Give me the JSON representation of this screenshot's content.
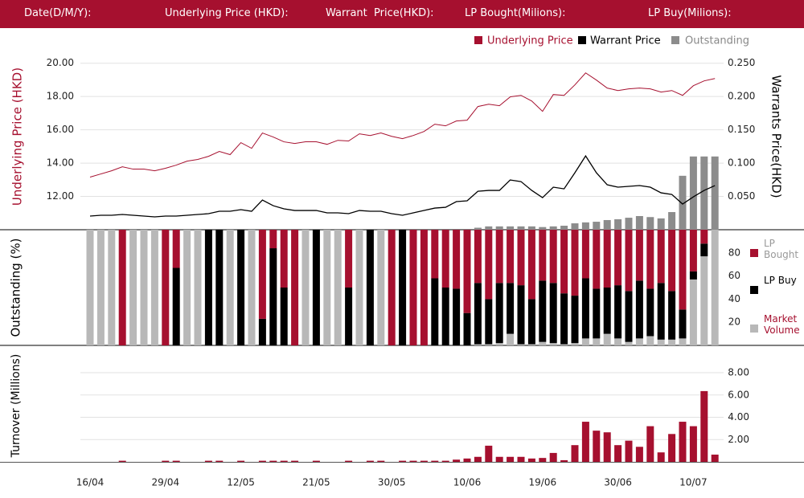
{
  "header": {
    "labels": [
      "Date(D/M/Y):",
      "Underlying Price (HKD):",
      "Warrant  Price(HKD):",
      "LP Bought(Milions):",
      "LP Buy(Milions):"
    ]
  },
  "chart_data": [
    {
      "type": "line",
      "y_label": "Underlying Price (HKD)",
      "y2_label": "Warrants  Price(HKD)",
      "legend": "top-right",
      "grid": true,
      "ylim": [
        10,
        21
      ],
      "yticks": [
        {
          "value": 12,
          "label": "12.00"
        },
        {
          "value": 14,
          "label": "14.00"
        },
        {
          "value": 16,
          "label": "16.00"
        },
        {
          "value": 18,
          "label": "18.00"
        },
        {
          "value": 20,
          "label": "20.00"
        }
      ],
      "y2lim": [
        0,
        0.275
      ],
      "y2ticks": [
        {
          "value": 0.05,
          "label": "0.050"
        },
        {
          "value": 0.1,
          "label": "0.100"
        },
        {
          "value": 0.15,
          "label": "0.150"
        },
        {
          "value": 0.2,
          "label": "0.200"
        },
        {
          "value": 0.25,
          "label": "0.250"
        }
      ],
      "series": [
        {
          "name": "Underlying Price",
          "color": "#a6102f",
          "type": "line",
          "values": [
            13.16,
            13.35,
            13.54,
            13.78,
            13.64,
            13.64,
            13.54,
            13.69,
            13.88,
            14.12,
            14.22,
            14.41,
            14.7,
            14.51,
            15.23,
            14.89,
            15.81,
            15.57,
            15.28,
            15.18,
            15.28,
            15.28,
            15.13,
            15.37,
            15.33,
            15.76,
            15.66,
            15.81,
            15.61,
            15.47,
            15.66,
            15.9,
            16.34,
            16.24,
            16.53,
            16.58,
            17.4,
            17.54,
            17.45,
            17.98,
            18.07,
            17.73,
            17.11,
            18.12,
            18.07,
            18.7,
            19.42,
            18.99,
            18.51,
            18.36,
            18.46,
            18.51,
            18.46,
            18.27,
            18.36,
            18.07,
            18.65,
            18.94,
            19.08
          ]
        },
        {
          "name": "Warrant  Price",
          "color": "#000000",
          "type": "line",
          "axis": "y2",
          "values": [
            0.0205,
            0.0217,
            0.0217,
            0.0229,
            0.0217,
            0.0205,
            0.0193,
            0.0205,
            0.0205,
            0.0217,
            0.0229,
            0.0241,
            0.0277,
            0.0277,
            0.0301,
            0.0277,
            0.0446,
            0.0361,
            0.0313,
            0.0289,
            0.0289,
            0.0289,
            0.0253,
            0.0253,
            0.0241,
            0.0289,
            0.0277,
            0.0277,
            0.0241,
            0.0217,
            0.0253,
            0.0289,
            0.0325,
            0.0337,
            0.0422,
            0.0434,
            0.0578,
            0.059,
            0.059,
            0.0747,
            0.0723,
            0.059,
            0.0482,
            0.0639,
            0.0614,
            0.0855,
            0.1108,
            0.0855,
            0.0675,
            0.0639,
            0.0651,
            0.0663,
            0.0639,
            0.0554,
            0.053,
            0.0386,
            0.0494,
            0.059,
            0.0663
          ]
        },
        {
          "name": "Outstanding",
          "color": "#8c8c8c",
          "type": "bar",
          "axis": "y2",
          "values": [
            0,
            0,
            0,
            0,
            0,
            0,
            0,
            0,
            0,
            0,
            0,
            0,
            0,
            0,
            0,
            0,
            0,
            0,
            0,
            0,
            0,
            0,
            0,
            0,
            0,
            0,
            0,
            0,
            0,
            0,
            0,
            0,
            0,
            0,
            0,
            0,
            0.003,
            0.005,
            0.005,
            0.005,
            0.005,
            0.005,
            0.004,
            0.005,
            0.006,
            0.0096,
            0.011,
            0.012,
            0.0145,
            0.0157,
            0.018,
            0.0205,
            0.019,
            0.017,
            0.0265,
            0.081,
            0.11,
            0.11,
            0.11
          ]
        }
      ]
    },
    {
      "type": "stacked-bar",
      "y_label": "Outstanding (%)",
      "legend": "right",
      "ylim": [
        0,
        100
      ],
      "yticks": [
        20,
        40,
        60,
        80
      ],
      "series": [
        {
          "name": "Market Volume",
          "color": "#b8b8b8",
          "values": [
            100,
            100,
            100,
            0,
            100,
            100,
            100,
            0,
            0,
            100,
            100,
            0,
            0,
            100,
            0,
            100,
            0,
            0,
            0,
            0,
            100,
            0,
            100,
            100,
            0,
            100,
            0,
            100,
            0,
            0,
            0,
            0,
            0,
            0,
            0,
            0,
            1,
            1,
            2,
            10,
            1,
            1,
            3,
            2,
            1,
            2,
            6,
            6,
            10,
            6,
            3,
            6,
            8,
            5,
            5,
            6,
            57,
            77,
            100
          ]
        },
        {
          "name": "LP Buy",
          "color": "#000000",
          "values": [
            0,
            0,
            0,
            0,
            0,
            0,
            0,
            0,
            67,
            0,
            0,
            100,
            100,
            0,
            100,
            0,
            23,
            84,
            50,
            0,
            0,
            100,
            0,
            0,
            50,
            0,
            100,
            0,
            0,
            100,
            0,
            0,
            58,
            50,
            49,
            28,
            53,
            39,
            52,
            44,
            51,
            39,
            53,
            52,
            44,
            41,
            52,
            43,
            40,
            46,
            44,
            50,
            41,
            49,
            42,
            25,
            7,
            11,
            0
          ]
        },
        {
          "name": "LP Bought",
          "color": "#a6102f",
          "values": [
            0,
            0,
            0,
            100,
            0,
            0,
            0,
            100,
            33,
            0,
            0,
            0,
            0,
            0,
            0,
            0,
            77,
            16,
            50,
            100,
            0,
            0,
            0,
            0,
            50,
            0,
            0,
            0,
            100,
            0,
            100,
            100,
            42,
            50,
            51,
            72,
            46,
            60,
            46,
            46,
            48,
            60,
            44,
            46,
            55,
            57,
            42,
            51,
            50,
            48,
            53,
            44,
            51,
            46,
            53,
            69,
            36,
            12,
            0
          ]
        }
      ]
    },
    {
      "type": "bar",
      "y_label": "Turnover (Millions)",
      "color": "#a6102f",
      "grid": true,
      "ylim": [
        0,
        8
      ],
      "yticks": [
        {
          "value": 2,
          "label": "2.00"
        },
        {
          "value": 4,
          "label": "4.00"
        },
        {
          "value": 6,
          "label": "6.00"
        },
        {
          "value": 8,
          "label": "8.00"
        }
      ],
      "categories": [
        "16/04",
        null,
        null,
        null,
        null,
        null,
        null,
        "29/04",
        null,
        null,
        null,
        null,
        null,
        null,
        "12/05",
        null,
        null,
        null,
        null,
        null,
        null,
        "21/05",
        null,
        null,
        null,
        null,
        null,
        null,
        "30/05",
        null,
        null,
        null,
        null,
        null,
        null,
        "10/06",
        null,
        null,
        null,
        null,
        null,
        null,
        "19/06",
        null,
        null,
        null,
        null,
        null,
        null,
        "30/06",
        null,
        null,
        null,
        null,
        null,
        null,
        "10/07",
        null,
        null
      ],
      "values": [
        0,
        0,
        0,
        0.1,
        0,
        0,
        0,
        0.1,
        0.1,
        0,
        0,
        0.1,
        0.1,
        0,
        0.1,
        0,
        0.1,
        0.1,
        0.1,
        0.1,
        0,
        0.1,
        0,
        0,
        0.1,
        0,
        0.1,
        0.1,
        0,
        0.1,
        0.1,
        0.1,
        0.1,
        0.1,
        0.2,
        0.3,
        0.45,
        1.45,
        0.45,
        0.45,
        0.45,
        0.3,
        0.35,
        0.8,
        0.15,
        1.5,
        3.6,
        2.8,
        2.65,
        1.5,
        1.9,
        1.35,
        3.2,
        0.85,
        2.5,
        3.6,
        3.2,
        6.35,
        0.65
      ]
    }
  ]
}
